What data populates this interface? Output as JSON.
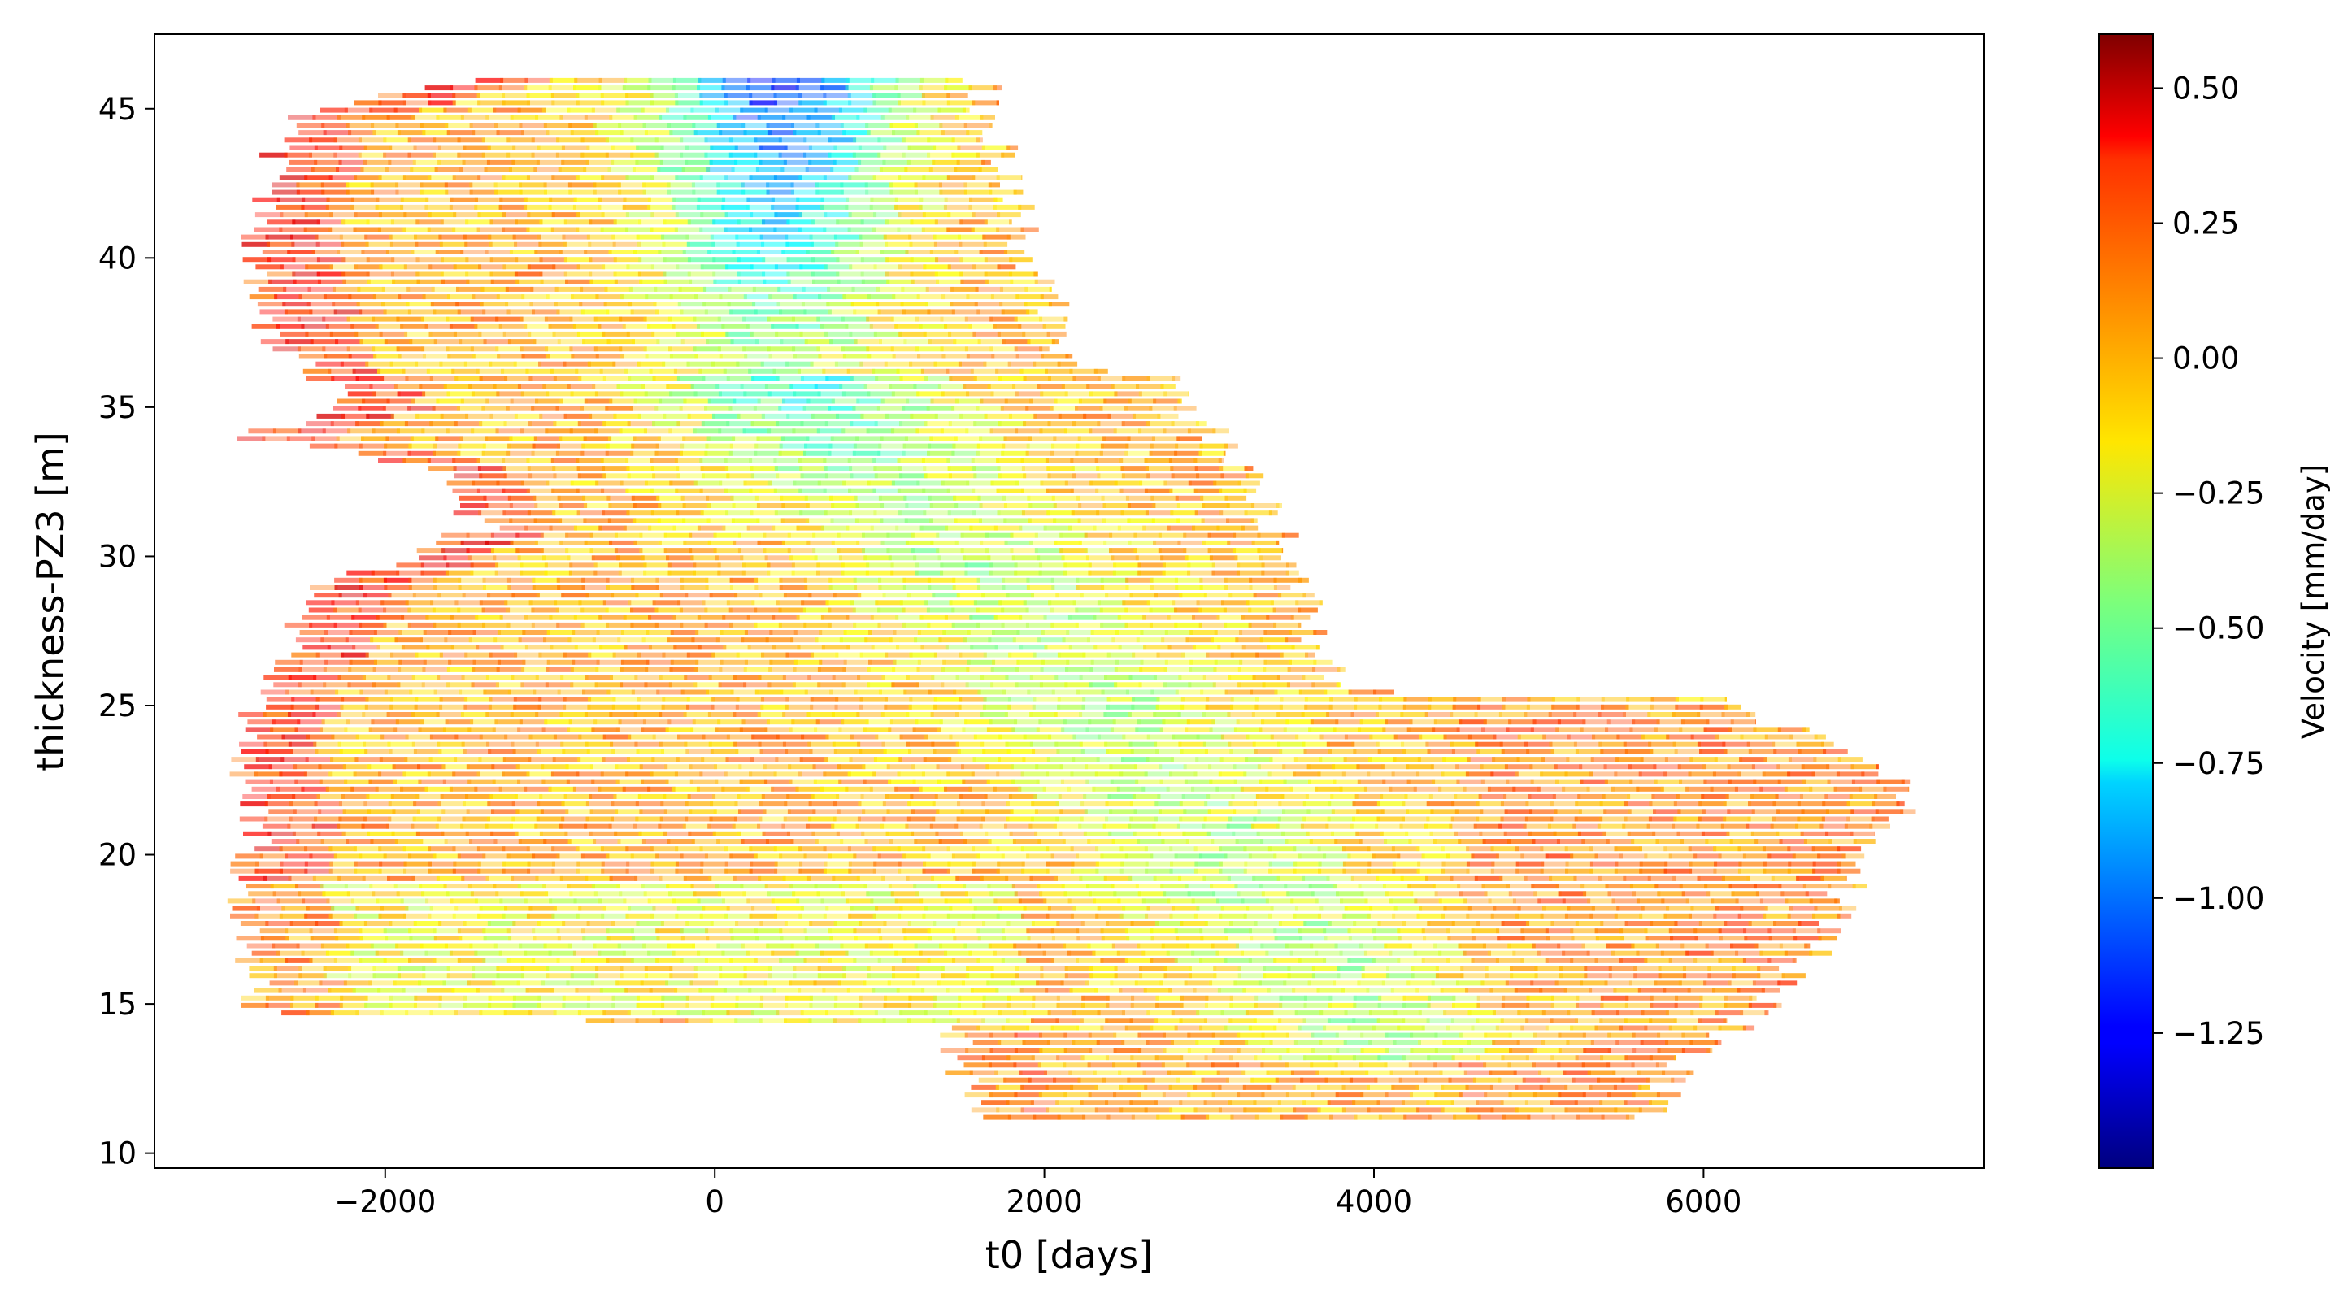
{
  "chart_data": {
    "type": "scatter",
    "xlabel": "t0 [days]",
    "ylabel": "thickness-PZ3 [m]",
    "xlim": [
      -3400,
      7700
    ],
    "ylim": [
      9.5,
      47.5
    ],
    "x_ticks": [
      -2000,
      0,
      2000,
      4000,
      6000
    ],
    "y_ticks": [
      10,
      15,
      20,
      25,
      30,
      35,
      40,
      45
    ],
    "x_tick_labels": [
      "−2000",
      "0",
      "2000",
      "4000",
      "6000"
    ],
    "y_tick_labels": [
      "10",
      "15",
      "20",
      "25",
      "30",
      "35",
      "40",
      "45"
    ],
    "grid": false,
    "legend": "none",
    "colorbar": {
      "label": "Velocity [mm/day]",
      "range": [
        -1.5,
        0.6
      ],
      "colormap": "jet",
      "ticks": [
        0.5,
        0.25,
        0.0,
        -0.25,
        -0.5,
        -0.75,
        -1.0,
        -1.25
      ],
      "tick_labels": [
        "0.50",
        "0.25",
        "0.00",
        "−0.25",
        "−0.50",
        "−0.75",
        "−1.00",
        "−1.25"
      ]
    },
    "regions": [
      {
        "y": [
          34,
          46
        ],
        "x": [
          -2750,
          1700
        ],
        "velocity": 0.0
      },
      {
        "y": [
          25,
          36
        ],
        "x": [
          -1400,
          3900
        ],
        "velocity": -0.1
      },
      {
        "y": [
          21,
          25.5
        ],
        "x": [
          -2800,
          7100
        ],
        "velocity": 0.05
      },
      {
        "y": [
          14.5,
          21
        ],
        "x": [
          -2800,
          6800
        ],
        "velocity": 0.05
      },
      {
        "y": [
          11,
          14.5
        ],
        "x": [
          1500,
          5800
        ],
        "velocity": 0.0
      }
    ],
    "low_velocity_zone": {
      "x": [
        -200,
        700
      ],
      "y": [
        31,
        46
      ],
      "velocity": -1.1
    }
  }
}
